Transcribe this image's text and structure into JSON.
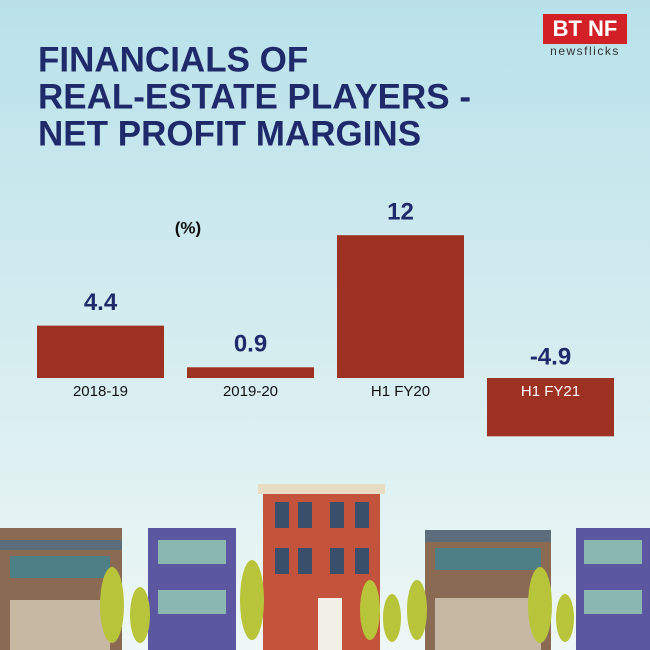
{
  "brand": {
    "mark": "BT NF",
    "tagline": "newsflicks"
  },
  "chart_data": {
    "type": "bar",
    "title": [
      "FINANCIALS OF",
      "REAL-ESTATE PLAYERS -",
      "NET PROFIT MARGINS"
    ],
    "unit": "(%)",
    "categories": [
      "2018-19",
      "2019-20",
      "H1 FY20",
      "H1 FY21"
    ],
    "values": [
      4.4,
      0.9,
      12,
      -4.9
    ],
    "value_labels": [
      "4.4",
      "0.9",
      "12",
      "-4.9"
    ],
    "color": "#9e3222"
  }
}
